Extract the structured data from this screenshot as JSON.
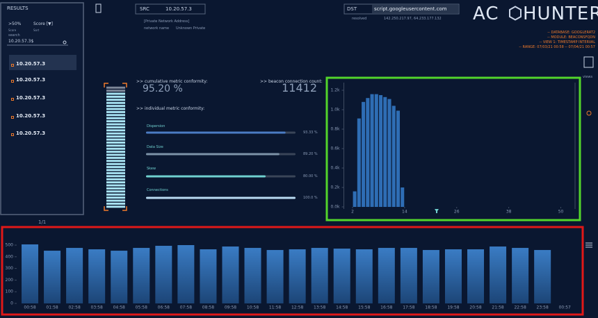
{
  "sidebar": {
    "title": "RESULTS",
    "filter": ">50%",
    "sort": "Score [▼]",
    "filter_label": "Score",
    "sort_label": "Sort",
    "search_label": "search",
    "search_value": "10.20.57.3$",
    "results": [
      "10.20.57.3",
      "10.20.57.3",
      "10.20.57.3",
      "10.20.57.3",
      "10.20.57.3"
    ],
    "pagination": "1/1"
  },
  "header": {
    "src_label": "SRC",
    "src": "10.20.57.3",
    "src_type": "[Private Network Address]",
    "network_name_label": "network name",
    "network_name": "Unknown Private",
    "dst_label": "DST",
    "dst": "script.googleusercontent.com",
    "resolved_label": "resolved",
    "resolved": "142.250.217.97, 64.233.177.132",
    "logo_left": "AC",
    "logo_right": "HUNTER",
    "info": [
      "-- DATABASE: GOOGLERAT2",
      "-- MODULE: BEACONSFQDN",
      "-- VIEW 1: TIMESTAMP INTERVAL",
      "-- RANGE: 07/03/21 00:58 -- 07/04/21 00:57"
    ],
    "views_label": "views"
  },
  "metrics": {
    "cumulative_label": ">> cumulative metric conformity:",
    "cumulative": 95.2,
    "cumulative_value_label": "95.20 %",
    "count_label": ">> beacon connection count:",
    "count": 11412,
    "individual_label": ">> individual metric conformity:",
    "items": [
      {
        "name": "Dispersion",
        "value": 93.33,
        "value_label": "93.33 %"
      },
      {
        "name": "Data Size",
        "value": 89.2,
        "value_label": "89.20 %"
      },
      {
        "name": "Skew",
        "value": 80,
        "value_label": "80.00 %"
      },
      {
        "name": "Connections",
        "value": 100,
        "value_label": "100.0 %"
      }
    ]
  },
  "chart_data": [
    {
      "type": "histogram",
      "bins": [
        2,
        3,
        4,
        5,
        6,
        7,
        8,
        9,
        10,
        11,
        12,
        13,
        14
      ],
      "values": [
        160,
        910,
        1080,
        1120,
        1160,
        1160,
        1150,
        1130,
        1110,
        1040,
        990,
        200
      ],
      "color": "#2e6db4",
      "xlim": [
        0,
        52
      ],
      "xticks": [
        2,
        14,
        26,
        38,
        50
      ],
      "ylim": [
        0,
        1250
      ],
      "yticks": [
        {
          "value": 0,
          "label": "0.0k"
        },
        {
          "value": 200,
          "label": "0.2k"
        },
        {
          "value": 400,
          "label": "0.4k"
        },
        {
          "value": 600,
          "label": "0.6k"
        },
        {
          "value": 800,
          "label": "0.8k"
        },
        {
          "value": 1000,
          "label": "1.0k"
        },
        {
          "value": 1200,
          "label": "1.2k"
        }
      ]
    },
    {
      "type": "bar",
      "categories": [
        "00:58",
        "01:58",
        "02:58",
        "03:58",
        "04:58",
        "05:58",
        "06:58",
        "07:58",
        "08:58",
        "09:58",
        "10:58",
        "11:58",
        "12:58",
        "13:58",
        "14:58",
        "15:58",
        "16:58",
        "17:58",
        "18:58",
        "19:58",
        "20:58",
        "21:58",
        "22:58",
        "23:58",
        "00:57"
      ],
      "values": [
        506,
        452,
        476,
        464,
        452,
        476,
        494,
        500,
        464,
        488,
        476,
        458,
        464,
        476,
        470,
        464,
        476,
        476,
        458,
        464,
        464,
        488,
        476,
        458,
        null
      ],
      "color": "#2a62a3",
      "ylim": [
        0,
        540
      ],
      "yticks": [
        0,
        100,
        200,
        300,
        400,
        500
      ]
    }
  ]
}
